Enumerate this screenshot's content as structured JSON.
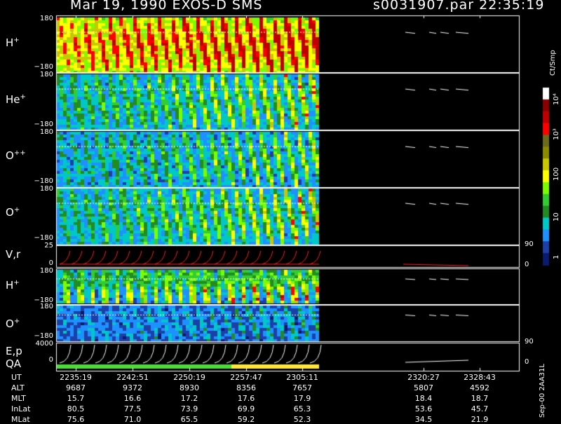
{
  "header": {
    "date_title": "Mar 19, 1990   EXOS-D SMS",
    "file_title": "s0031907.par  22:35:19"
  },
  "panels": [
    {
      "label": "H",
      "sup": "+",
      "tick_top": "180",
      "tick_bottom": "−180"
    },
    {
      "label": "He",
      "sup": "+",
      "tick_top": "180",
      "tick_bottom": "−180"
    },
    {
      "label": "O",
      "sup": "++",
      "tick_top": "180",
      "tick_bottom": "−180"
    },
    {
      "label": "O",
      "sup": "+",
      "tick_top": "180",
      "tick_bottom": "−180"
    }
  ],
  "vr_panel": {
    "label": "V,r",
    "tick_top": "25",
    "tick_bottom": "0",
    "right_top": "90",
    "right_bottom": "0"
  },
  "low_panels": [
    {
      "label": "H",
      "sup": "+",
      "tick_top": "180",
      "tick_bottom": "−180"
    },
    {
      "label": "O",
      "sup": "+",
      "tick_top": "180",
      "tick_bottom": "−180"
    }
  ],
  "ep_panel": {
    "label1": "E,p",
    "label2": "QA",
    "tick_top": "4000",
    "tick_bottom": "0",
    "right_top": "90",
    "right_bottom": "0"
  },
  "colorbar": {
    "unit": "Ct/Smp",
    "labels": [
      "10⁴",
      "10³",
      "100",
      "10",
      "1"
    ],
    "colors": [
      "#ffffff",
      "#8b0000",
      "#c00000",
      "#ff0000",
      "#6b6b1f",
      "#8b8b00",
      "#c8c800",
      "#ffff00",
      "#7cfc00",
      "#32cd32",
      "#228b22",
      "#00c8c8",
      "#1e90ff",
      "#1c3fa8",
      "#0a1a6e"
    ]
  },
  "footer": {
    "rows": [
      {
        "label": "UT",
        "values": [
          "2235:19",
          "2242:51",
          "2250:19",
          "2257:47",
          "2305:11",
          "2320:27",
          "2328:43"
        ]
      },
      {
        "label": "ALT",
        "values": [
          "9687",
          "9372",
          "8930",
          "8356",
          "7657",
          "5807",
          "4592"
        ]
      },
      {
        "label": "MLT",
        "values": [
          "15.7",
          "16.6",
          "17.2",
          "17.6",
          "17.9",
          "18.4",
          "18.7"
        ]
      },
      {
        "label": "InLat",
        "values": [
          "80.5",
          "77.5",
          "73.9",
          "69.9",
          "65.3",
          "53.6",
          "45.7"
        ]
      },
      {
        "label": "MLat",
        "values": [
          "75.6",
          "71.0",
          "65.5",
          "59.2",
          "52.3",
          "34.5",
          "21.9"
        ]
      }
    ],
    "side_note": "Sep-00 2AA31L"
  },
  "chart_data": {
    "type": "heatmap",
    "title": "Mar 19, 1990 EXOS-D SMS",
    "file": "s0031907.par 22:35:19",
    "x_ticks": [
      "2235:19",
      "2242:51",
      "2250:19",
      "2257:47",
      "2305:11",
      "2320:27",
      "2328:43"
    ],
    "panels": [
      "H+",
      "He+",
      "O++",
      "O+",
      "V,r",
      "H+",
      "O+",
      "E,p"
    ],
    "ylim_pitch": [
      -180,
      180
    ],
    "ylim_vr": [
      0,
      25
    ],
    "ylim_energy": [
      0,
      4000
    ],
    "colorbar_range": [
      "1",
      "10⁴"
    ],
    "colorbar_unit": "Ct/Smp"
  }
}
